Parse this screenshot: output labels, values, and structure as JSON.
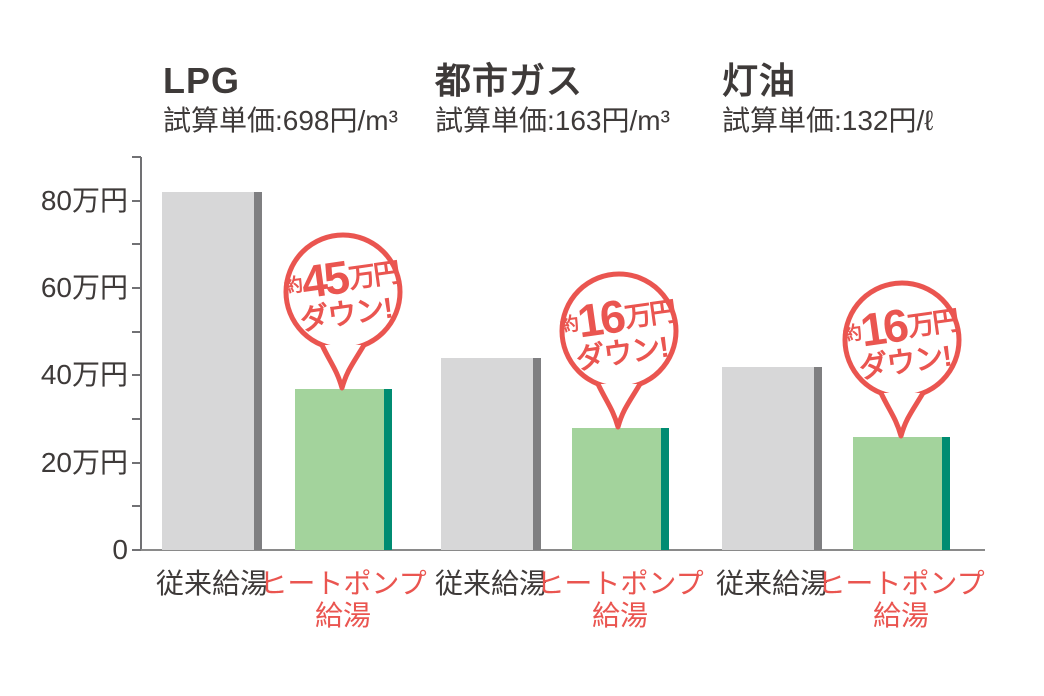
{
  "page": {
    "background": "#ffffff"
  },
  "chart_data": {
    "type": "bar",
    "title": "",
    "xlabel": "",
    "ylabel": "",
    "unit": "万円",
    "ylim": [
      0,
      90
    ],
    "grid": false,
    "legend_position": "none",
    "y_axis": {
      "tick_labels": [
        "0",
        "20万円",
        "40万円",
        "60万円",
        "80万円"
      ],
      "labeled_tick_interval": 20,
      "minor_tick_interval": 10
    },
    "categories": [
      "LPG",
      "都市ガス",
      "灯油"
    ],
    "series": [
      {
        "name": "従来給湯",
        "color": "#d7d7d8",
        "edge_color": "#7f7f81",
        "values": [
          82,
          44,
          42
        ]
      },
      {
        "name": "ヒートポンプ給湯",
        "color": "#a3d39c",
        "edge_color": "#008c72",
        "values": [
          37,
          28,
          26
        ]
      }
    ],
    "annotations": [
      "約45万円ダウン!",
      "約16万円ダウン!",
      "約16万円ダウン!"
    ]
  },
  "groups": [
    {
      "title": "LPG",
      "subtitle": "試算単価:698円/m³",
      "conventional_label": "従来給湯",
      "heatpump_label_line1": "ヒートポンプ",
      "heatpump_label_line2": "給湯",
      "bubble": {
        "prefix": "約",
        "amount": "45",
        "unit": "万円",
        "suffix": "ダウン!"
      }
    },
    {
      "title": "都市ガス",
      "subtitle": "試算単価:163円/m³",
      "conventional_label": "従来給湯",
      "heatpump_label_line1": "ヒートポンプ",
      "heatpump_label_line2": "給湯",
      "bubble": {
        "prefix": "約",
        "amount": "16",
        "unit": "万円",
        "suffix": "ダウン!"
      }
    },
    {
      "title": "灯油",
      "subtitle": "試算単価:132円/ℓ",
      "conventional_label": "従来給湯",
      "heatpump_label_line1": "ヒートポンプ",
      "heatpump_label_line2": "給湯",
      "bubble": {
        "prefix": "約",
        "amount": "16",
        "unit": "万円",
        "suffix": "ダウン!"
      }
    }
  ],
  "colors": {
    "text_dark": "#3e3a39",
    "accent_red": "#ea5550",
    "bar_gray": "#d7d7d8",
    "bar_gray_edge": "#7f7f81",
    "bar_green": "#a3d39c",
    "bar_green_edge": "#008c72",
    "axis": "#717174",
    "baseline": "#8a8a8a"
  }
}
